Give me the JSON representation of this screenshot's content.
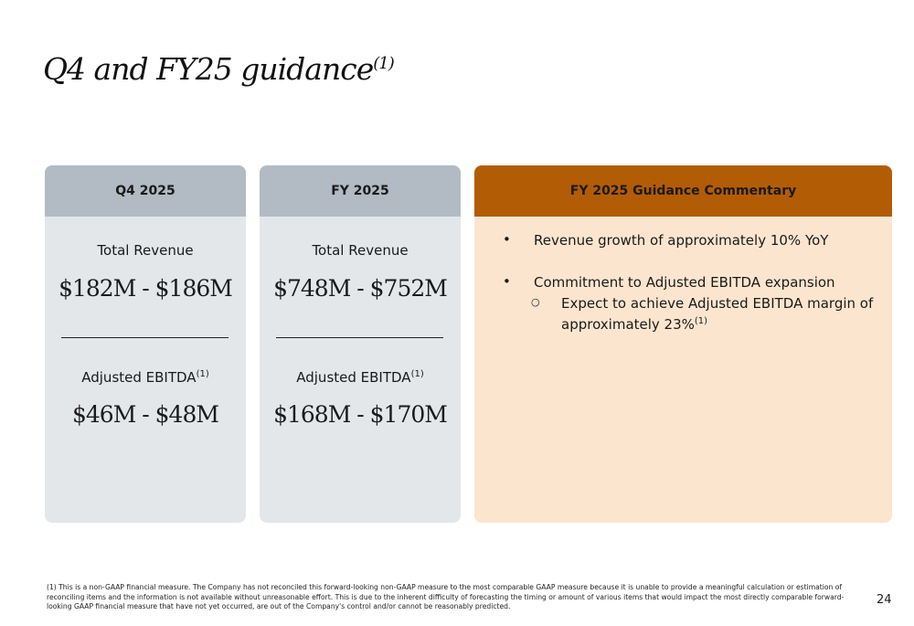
{
  "title": {
    "text": "Q4 and FY25 guidance",
    "sup": "(1)"
  },
  "cards": [
    {
      "header": "Q4 2025",
      "revenue_label": "Total Revenue",
      "revenue": "$182M - $186M",
      "ebitda_label": "Adjusted EBITDA",
      "ebitda_sup": "(1)",
      "ebitda": "$46M - $48M"
    },
    {
      "header": "FY 2025",
      "revenue_label": "Total Revenue",
      "revenue": "$748M - $752M",
      "ebitda_label": "Adjusted EBITDA",
      "ebitda_sup": "(1)",
      "ebitda": "$168M - $170M"
    }
  ],
  "commentary": {
    "header": "FY 2025 Guidance Commentary",
    "bullet1": "Revenue growth of approximately 10% YoY",
    "bullet2": "Commitment to Adjusted EBITDA expansion",
    "sub1": "Expect to achieve Adjusted EBITDA margin of",
    "sub1b": "approximately 23%",
    "sub1_sup": "(1)"
  },
  "footnote": "(1) This is a non-GAAP financial measure. The Company has not reconciled this forward-looking non-GAAP measure to the most comparable GAAP measure because it is unable to provide a meaningful calculation or estimation of reconciling items and the information is not available without unreasonable effort. This is due to the inherent difficulty of forecasting the timing or amount of various items that would impact the most directly comparable forward-looking GAAP financial measure that have not yet occurred, are out of the Company's control and/or cannot be reasonably predicted.",
  "page_number": "24",
  "colors": {
    "grey_header": "#b2bac3",
    "grey_body": "#e3e7ea",
    "accent_header": "#b35c06",
    "accent_body": "#fce5cf"
  }
}
